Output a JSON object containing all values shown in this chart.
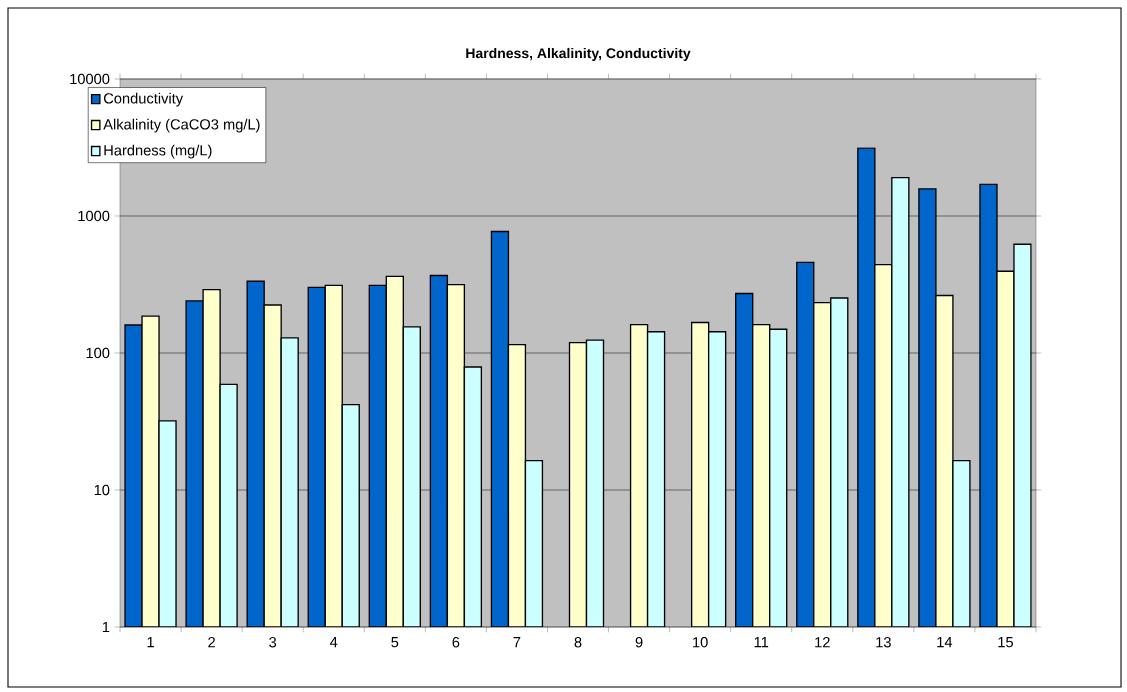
{
  "chart_data": {
    "type": "bar",
    "title": "Hardness, Alkalinity, Conductivity",
    "categories": [
      "1",
      "2",
      "3",
      "4",
      "5",
      "6",
      "7",
      "8",
      "9",
      "10",
      "11",
      "12",
      "13",
      "14",
      "15"
    ],
    "series": [
      {
        "name": "Conductivity",
        "color": "#0066cc",
        "values": [
          160,
          240,
          334,
          301,
          312,
          368,
          771,
          null,
          null,
          null,
          272,
          459,
          3126,
          1577,
          1702
        ]
      },
      {
        "name": "Alkalinity (CaCO3 mg/L)",
        "color": "#ffffcc",
        "values": [
          186,
          290,
          224,
          312,
          363,
          316,
          115,
          119,
          161,
          167,
          161,
          233,
          442,
          263,
          395
        ]
      },
      {
        "name": "Hardness (mg/L)",
        "color": "#ccffff",
        "values": [
          32,
          59,
          129,
          42,
          155,
          79,
          16.4,
          124,
          143,
          143,
          149,
          252,
          1905,
          16.4,
          622
        ]
      }
    ],
    "ylim": [
      1,
      10000
    ],
    "yticks": [
      1,
      10,
      100,
      1000,
      10000
    ],
    "log": true,
    "grid": "y",
    "legend": "top left"
  }
}
